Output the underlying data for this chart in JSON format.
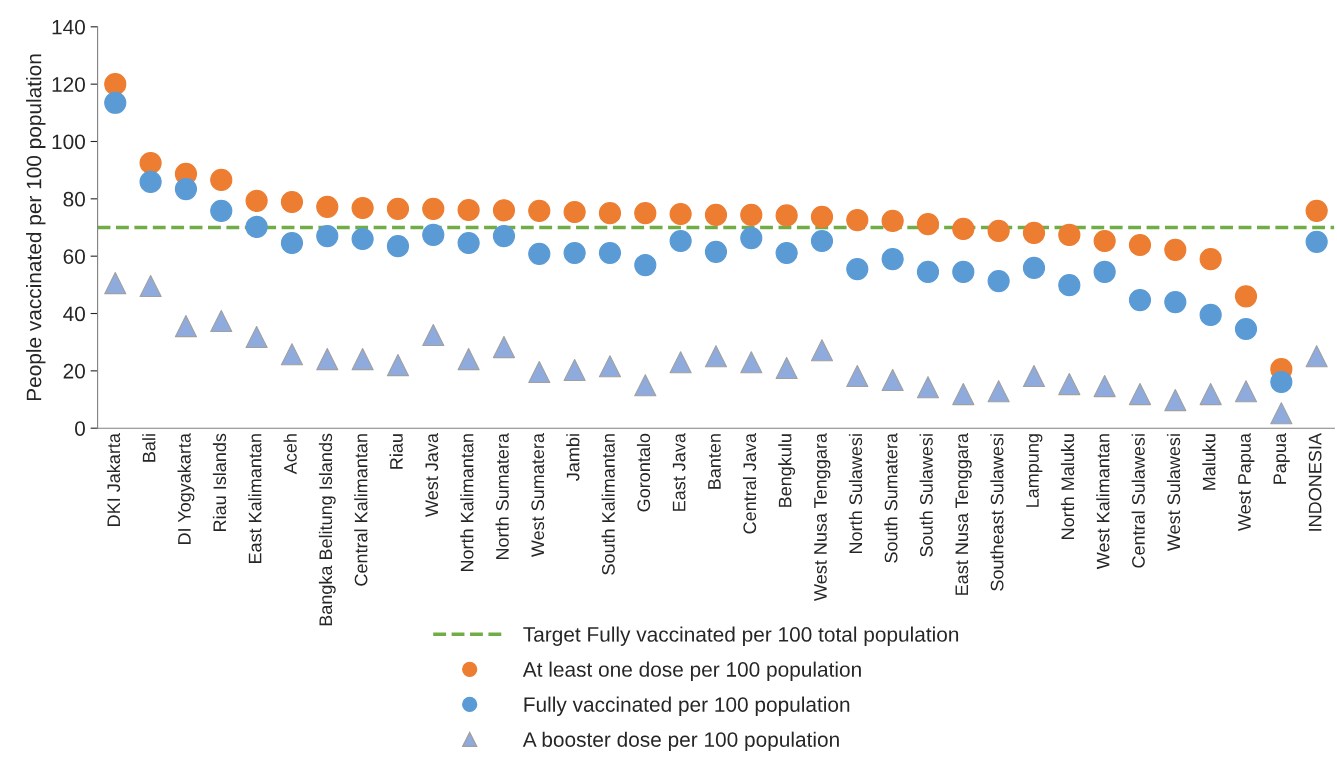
{
  "chart_data": {
    "type": "scatter",
    "ylabel": "People vaccinated per 100 population",
    "categories": [
      "DKI Jakarta",
      "Bali",
      "DI Yogyakarta",
      "Riau Islands",
      "East Kalimantan",
      "Aceh",
      "Bangka Belitung Islands",
      "Central Kalimantan",
      "Riau",
      "West Java",
      "North Kalimantan",
      "North Sumatera",
      "West Sumatera",
      "Jambi",
      "South Kalimantan",
      "Gorontalo",
      "East Java",
      "Banten",
      "Central Java",
      "Bengkulu",
      "West Nusa Tenggara",
      "North Sulawesi",
      "South Sumatera",
      "South Sulawesi",
      "East Nusa Tenggara",
      "Southeast Sulawesi",
      "Lampung",
      "North Maluku",
      "West Kalimantan",
      "Central Sulawesi",
      "West Sulawesi",
      "Maluku",
      "West Papua",
      "Papua",
      "INDONESIA"
    ],
    "series": [
      {
        "name": "At least one dose per 100 population",
        "color": "#ed7d31",
        "marker": "circle",
        "values": [
          120,
          92.5,
          88.7,
          86.6,
          79.3,
          78.9,
          77.2,
          76.8,
          76.5,
          76.5,
          76.1,
          76,
          75.8,
          75.4,
          75,
          75,
          74.7,
          74.4,
          74.4,
          74.2,
          73.7,
          72.6,
          72.3,
          71.2,
          69.5,
          68.8,
          68.1,
          67.4,
          65.3,
          63.9,
          62.2,
          59,
          46,
          20.6,
          75.8
        ]
      },
      {
        "name": "Fully vaccinated per 100 population",
        "color": "#5b9bd5",
        "marker": "circle",
        "values": [
          113.5,
          85.9,
          83.4,
          75.8,
          70.2,
          64.6,
          67,
          66,
          63.5,
          67.4,
          64.6,
          67,
          60.8,
          61.1,
          61.1,
          56.9,
          65.3,
          61.5,
          66.3,
          61.1,
          65.3,
          55.5,
          59,
          54.5,
          54.5,
          51.3,
          55.9,
          49.9,
          54.5,
          44.7,
          44,
          39.5,
          34.6,
          16.1,
          65
        ]
      },
      {
        "name": "A booster dose per 100 population",
        "color": "#8faadc",
        "marker": "triangle",
        "values": [
          50.6,
          49.6,
          35.6,
          37.4,
          31.8,
          25.8,
          24.1,
          24.1,
          22,
          32.5,
          24.1,
          28.3,
          19.6,
          20.3,
          21.6,
          15,
          23,
          25.1,
          23,
          21,
          27.2,
          18.2,
          16.8,
          14.3,
          11.9,
          12.9,
          18.2,
          15.4,
          14.7,
          11.9,
          9.8,
          11.9,
          12.9,
          5.2,
          25.1
        ]
      }
    ],
    "ref_lines": [
      {
        "axis": "y",
        "value": 70,
        "label": "Target Fully vaccinated per 100 total population",
        "color": "#70ad47",
        "line_style": "dashed"
      }
    ],
    "ylim": [
      0,
      140
    ],
    "yticks": [
      0,
      20,
      40,
      60,
      80,
      100,
      120,
      140
    ],
    "grid": false,
    "legend": "bottom"
  }
}
